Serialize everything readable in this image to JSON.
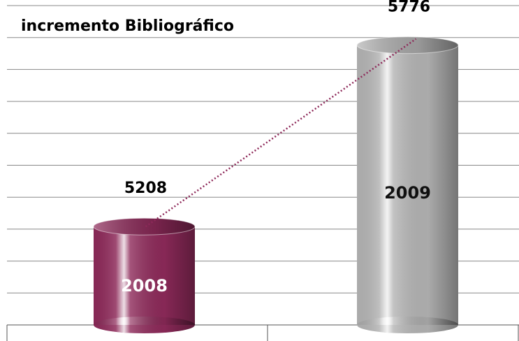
{
  "chart_data": {
    "type": "bar",
    "title": "incremento Bibliográfico",
    "categories": [
      "2008",
      "2009"
    ],
    "values": [
      5208,
      5776
    ],
    "colors": [
      "#8e2a5a",
      "#b4b4b4"
    ],
    "ylim": [
      4900,
      5900
    ],
    "yticks": [
      4900,
      5000,
      5100,
      5200,
      5300,
      5400,
      5500,
      5600,
      5700,
      5800,
      5900
    ],
    "grid": true
  }
}
